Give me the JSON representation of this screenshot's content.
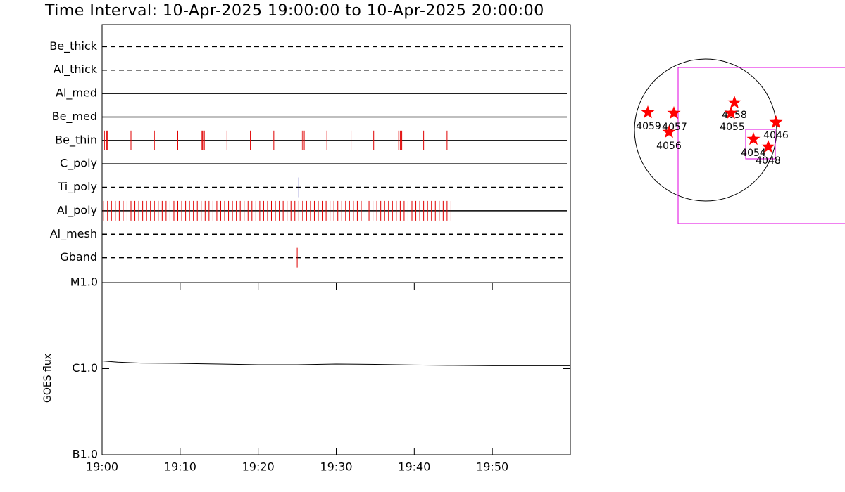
{
  "title": "Time Interval: 10-Apr-2025 19:00:00 to 10-Apr-2025 20:00:00",
  "chart_data": [
    {
      "type": "event",
      "xlim": [
        0,
        60
      ],
      "rows": [
        {
          "name": "Be_thick",
          "line": "dashed",
          "color": "#e00000",
          "events": []
        },
        {
          "name": "Al_thick",
          "line": "dashed",
          "color": "#e00000",
          "events": []
        },
        {
          "name": "Al_med",
          "line": "solid",
          "color": "#e00000",
          "events": []
        },
        {
          "name": "Be_med",
          "line": "solid",
          "color": "#e00000",
          "events": []
        },
        {
          "name": "Be_thin",
          "line": "solid",
          "color": "#e00000",
          "events": [
            0.3,
            0.5,
            0.6,
            0.7,
            3.7,
            6.7,
            9.7,
            12.8,
            12.9,
            13.1,
            16.0,
            19.0,
            22.0,
            25.5,
            25.7,
            25.9,
            28.8,
            31.9,
            34.8,
            38.0,
            38.2,
            38.4,
            41.2,
            44.2
          ]
        },
        {
          "name": "C_poly",
          "line": "solid",
          "color": "#e00000",
          "events": []
        },
        {
          "name": "Ti_poly",
          "line": "dashed",
          "color": "#3030b0",
          "events": [
            25.2
          ]
        },
        {
          "name": "Al_poly",
          "line": "solid",
          "color": "#e00000",
          "events": [
            0.2,
            0.7,
            1.2,
            1.7,
            2.2,
            2.7,
            3.2,
            3.7,
            4.2,
            4.7,
            5.2,
            5.7,
            6.2,
            6.7,
            7.2,
            7.7,
            8.2,
            8.7,
            9.2,
            9.7,
            10.2,
            10.7,
            11.2,
            11.7,
            12.2,
            12.7,
            13.2,
            13.7,
            14.2,
            14.7,
            15.2,
            15.7,
            16.2,
            16.7,
            17.2,
            17.7,
            18.2,
            18.7,
            19.2,
            19.7,
            20.2,
            20.7,
            21.2,
            21.7,
            22.2,
            22.7,
            23.2,
            23.7,
            24.2,
            24.7,
            25.2,
            25.7,
            26.2,
            26.7,
            27.2,
            27.7,
            28.2,
            28.7,
            29.2,
            29.7,
            30.2,
            30.7,
            31.2,
            31.7,
            32.2,
            32.7,
            33.2,
            33.7,
            34.2,
            34.7,
            35.2,
            35.7,
            36.2,
            36.7,
            37.2,
            37.7,
            38.2,
            38.7,
            39.2,
            39.7,
            40.2,
            40.7,
            41.2,
            41.7,
            42.2,
            42.7,
            43.2,
            43.7,
            44.2,
            44.7
          ]
        },
        {
          "name": "Al_mesh",
          "line": "dashed",
          "color": "#e00000",
          "events": []
        },
        {
          "name": "Gband",
          "line": "dashed",
          "color": "#e00000",
          "events": [
            25.0
          ]
        }
      ]
    },
    {
      "type": "line",
      "ylabel": "GOES flux",
      "x": [
        0,
        2,
        5,
        10,
        15,
        20,
        25,
        30,
        35,
        40,
        45,
        50,
        55,
        60
      ],
      "series": [
        {
          "color": "#000000",
          "values": [
            1.23e-06,
            1.19e-06,
            1.16e-06,
            1.15e-06,
            1.13e-06,
            1.11e-06,
            1.11e-06,
            1.13e-06,
            1.12e-06,
            1.1e-06,
            1.09e-06,
            1.08e-06,
            1.08e-06,
            1.08e-06
          ]
        }
      ],
      "xlim": [
        0,
        60
      ],
      "xticks": [
        {
          "value": 0,
          "label": "19:00"
        },
        {
          "value": 10,
          "label": "19:10"
        },
        {
          "value": 20,
          "label": "19:20"
        },
        {
          "value": 30,
          "label": "19:30"
        },
        {
          "value": 40,
          "label": "19:40"
        },
        {
          "value": 50,
          "label": "19:50"
        }
      ],
      "ylim": [
        1e-07,
        1e-05
      ],
      "yticks": [
        {
          "value": 1e-05,
          "label": "M1.0"
        },
        {
          "value": 1e-06,
          "label": "C1.0"
        },
        {
          "value": 1e-07,
          "label": "B1.0"
        }
      ],
      "log_scale": true
    }
  ],
  "map": {
    "regions": [
      "4059",
      "4057",
      "4056",
      "4058",
      "4055",
      "4046",
      "4054",
      "4048"
    ],
    "star_color": "#ff0000",
    "box_color": "#e000e0"
  }
}
